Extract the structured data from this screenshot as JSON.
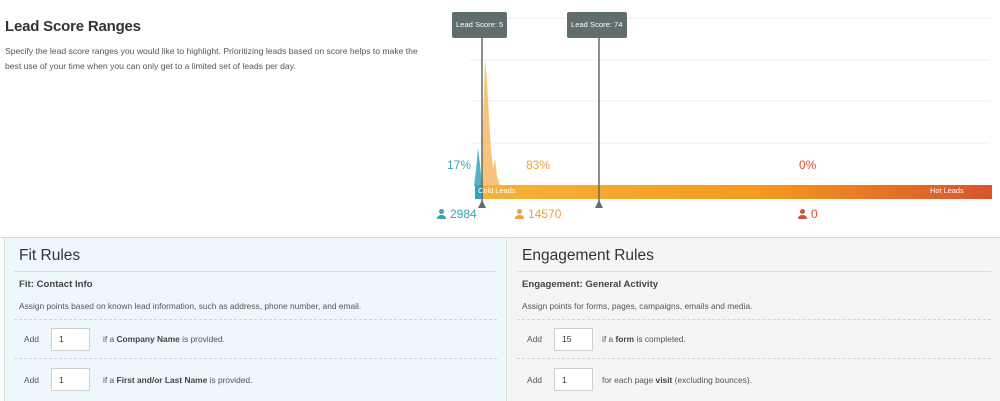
{
  "header": {
    "title": "Lead Score Ranges",
    "description": "Specify the lead score ranges you would like to highlight. Prioritizing leads based on score helps to make the best use of your time when you can only get to a limited set of leads per day."
  },
  "chart": {
    "markers": [
      {
        "label": "Lead Score: 5",
        "score": 5
      },
      {
        "label": "Lead Score: 74",
        "score": 74
      }
    ],
    "percents": [
      {
        "value": "17%",
        "color": "#3aa3b5"
      },
      {
        "value": "83%",
        "color": "#eea13a"
      },
      {
        "value": "0%",
        "color": "#d9532c"
      }
    ],
    "counts": [
      {
        "value": "2984",
        "color": "#3aa3b5"
      },
      {
        "value": "14570",
        "color": "#eea13a"
      },
      {
        "value": "0",
        "color": "#d9532c"
      }
    ],
    "bar_labels": {
      "cold": "Cold Leads",
      "hot": "Hot Leads"
    },
    "colors": {
      "cold": "#3aa3b5",
      "warm": "#f6a623",
      "hot": "#d9532c"
    }
  },
  "fit": {
    "title": "Fit Rules",
    "section": "Fit: Contact Info",
    "description": "Assign points based on known lead information, such as address, phone number, and email.",
    "rules": [
      {
        "add": "Add",
        "value": "1",
        "pre": "if a ",
        "bold": "Company Name",
        "post": " is provided."
      },
      {
        "add": "Add",
        "value": "1",
        "pre": "if a ",
        "bold": "First and/or Last Name",
        "post": " is provided."
      }
    ]
  },
  "engagement": {
    "title": "Engagement Rules",
    "section": "Engagement: General Activity",
    "description": "Assign points for forms, pages, campaigns, emails and media.",
    "rules": [
      {
        "add": "Add",
        "value": "15",
        "pre": "if a ",
        "bold": "form",
        "post": " is completed."
      },
      {
        "add": "Add",
        "value": "1",
        "pre": "for each page ",
        "bold": "visit",
        "post": " (excluding bounces)."
      }
    ]
  }
}
